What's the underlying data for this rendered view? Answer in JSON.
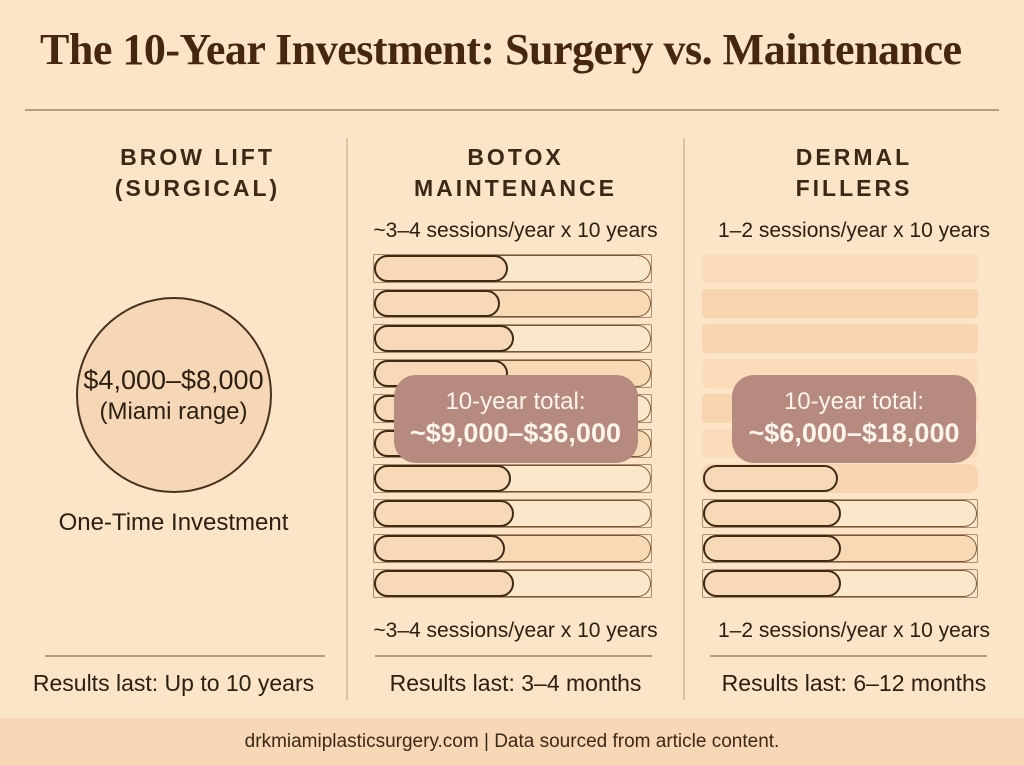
{
  "header": {
    "title": "The 10-Year Investment: Surgery vs. Maintenance"
  },
  "columns": [
    {
      "id": "brow-lift",
      "title_line1": "BROW LIFT",
      "title_line2": "(SURGICAL)",
      "circle_price": "$4,000–$8,000",
      "circle_range": "(Miami range)",
      "caption": "One-Time Investment",
      "results": "Results last: Up to 10 years"
    },
    {
      "id": "botox-maintenance",
      "title_line1": "BOTOX",
      "title_line2": "MAINTENANCE",
      "sessions_top": "~3–4 sessions/year x 10 years",
      "sessions_bottom": "~3–4 sessions/year x 10 years",
      "total_label": "10-year total:",
      "total_value": "~$9,000–$36,000",
      "results": "Results last: 3–4 months",
      "bars": [
        {
          "type": "track-pill",
          "track": "light",
          "fill_pct": 48
        },
        {
          "type": "track-pill",
          "track": "dark",
          "fill_pct": 45
        },
        {
          "type": "track-pill",
          "track": "light",
          "fill_pct": 50
        },
        {
          "type": "track-pill",
          "track": "dark",
          "fill_pct": 48
        },
        {
          "type": "track-pill",
          "track": "light",
          "fill_pct": 46
        },
        {
          "type": "track-pill",
          "track": "dark",
          "fill_pct": 47
        },
        {
          "type": "track-pill",
          "track": "light",
          "fill_pct": 49
        },
        {
          "type": "track-pill",
          "track": "light",
          "fill_pct": 50
        },
        {
          "type": "track-pill",
          "track": "dark",
          "fill_pct": 47
        },
        {
          "type": "track-pill",
          "track": "light",
          "fill_pct": 50
        }
      ]
    },
    {
      "id": "dermal-fillers",
      "title_line1": "DERMAL",
      "title_line2": "FILLERS",
      "sessions_top": "1–2 sessions/year x 10 years",
      "sessions_bottom": "1–2 sessions/year x 10 years",
      "total_label": "10-year total:",
      "total_value": "~$6,000–$18,000",
      "results": "Results last: 6–12 months",
      "bars": [
        {
          "type": "band",
          "shade": "a"
        },
        {
          "type": "band",
          "shade": "b"
        },
        {
          "type": "band",
          "shade": "b"
        },
        {
          "type": "band",
          "shade": "a"
        },
        {
          "type": "band",
          "shade": "b"
        },
        {
          "type": "band",
          "shade": "a"
        },
        {
          "type": "band-pill",
          "fill_pct": 49
        },
        {
          "type": "track-pill",
          "track": "light",
          "fill_pct": 50
        },
        {
          "type": "track-pill",
          "track": "dark",
          "fill_pct": 50
        },
        {
          "type": "track-pill",
          "track": "light",
          "fill_pct": 50
        }
      ]
    }
  ],
  "footer": {
    "text": "drkmiamiplasticsurgery.com | Data sourced from article content."
  },
  "colors": {
    "bg": "#fbe4c7",
    "footer-bg": "#f7d7b5",
    "title-ink": "#45260f",
    "head-ink": "#3a2917",
    "ink": "#2b2013",
    "rule": "#bb9c74",
    "vdiv": "#dcc3a2",
    "circle-fill": "#f6d7b5",
    "circle-border": "#46311c",
    "track-light": "#fbe7cb",
    "track-dark": "#f7d9b6",
    "full-border": "#7a5733",
    "pill-fill": "#f7d9b8",
    "pill-border": "#3e2b16",
    "band-a": "#fbdcba",
    "band-b": "#f8d5b0",
    "badge-bg": "#b68a7e",
    "badge-ink": "#fdf4eb"
  }
}
